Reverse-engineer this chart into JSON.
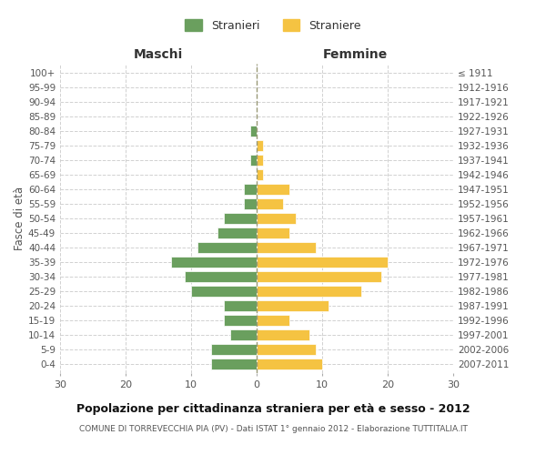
{
  "age_groups": [
    "0-4",
    "5-9",
    "10-14",
    "15-19",
    "20-24",
    "25-29",
    "30-34",
    "35-39",
    "40-44",
    "45-49",
    "50-54",
    "55-59",
    "60-64",
    "65-69",
    "70-74",
    "75-79",
    "80-84",
    "85-89",
    "90-94",
    "95-99",
    "100+"
  ],
  "birth_years": [
    "2007-2011",
    "2002-2006",
    "1997-2001",
    "1992-1996",
    "1987-1991",
    "1982-1986",
    "1977-1981",
    "1972-1976",
    "1967-1971",
    "1962-1966",
    "1957-1961",
    "1952-1956",
    "1947-1951",
    "1942-1946",
    "1937-1941",
    "1932-1936",
    "1927-1931",
    "1922-1926",
    "1917-1921",
    "1912-1916",
    "≤ 1911"
  ],
  "maschi": [
    7,
    7,
    4,
    5,
    5,
    10,
    11,
    13,
    9,
    6,
    5,
    2,
    2,
    0,
    1,
    0,
    1,
    0,
    0,
    0,
    0
  ],
  "femmine": [
    10,
    9,
    8,
    5,
    11,
    16,
    19,
    20,
    9,
    5,
    6,
    4,
    5,
    1,
    1,
    1,
    0,
    0,
    0,
    0,
    0
  ],
  "male_color": "#6a9f5e",
  "female_color": "#f5c342",
  "background_color": "#ffffff",
  "grid_color": "#cccccc",
  "title": "Popolazione per cittadinanza straniera per età e sesso - 2012",
  "subtitle": "COMUNE DI TORREVECCHIA PIA (PV) - Dati ISTAT 1° gennaio 2012 - Elaborazione TUTTITALIA.IT",
  "xlabel_left": "Maschi",
  "xlabel_right": "Femmine",
  "ylabel_left": "Fasce di età",
  "legend_male": "Stranieri",
  "legend_female": "Straniere",
  "xlim": 30,
  "xticklabels": [
    "30",
    "20",
    "10",
    "0",
    "10",
    "20",
    "30"
  ]
}
